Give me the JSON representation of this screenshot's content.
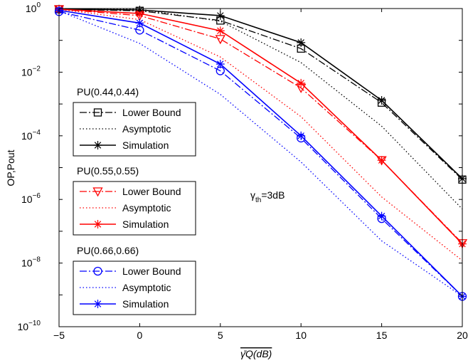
{
  "chart_data": {
    "type": "line",
    "xlabel": "γ̄Q(dB)",
    "ylabel": "OP,Pout",
    "x": [
      -5,
      0,
      5,
      10,
      15,
      20
    ],
    "xlim": [
      -5,
      20
    ],
    "ylim_exponent": [
      -10,
      0
    ],
    "log_scale_y": true,
    "grid": false,
    "x_ticks": [
      "−5",
      "0",
      "5",
      "10",
      "15",
      "20"
    ],
    "y_ticks": [
      {
        "exp": 0,
        "base": "10",
        "sup": "0"
      },
      {
        "exp": -2,
        "base": "10",
        "sup": "−2"
      },
      {
        "exp": -4,
        "base": "10",
        "sup": "−4"
      },
      {
        "exp": -6,
        "base": "10",
        "sup": "−6"
      },
      {
        "exp": -8,
        "base": "10",
        "sup": "−8"
      },
      {
        "exp": -10,
        "base": "10",
        "sup": "−10"
      }
    ],
    "annotation": {
      "text": "γth=3dB",
      "base": "γ",
      "sub": "th",
      "rest": "=3dB"
    },
    "groups": [
      {
        "title": "PU(0.44,0.44)",
        "color": "#000000",
        "series": [
          {
            "name": "Lower Bound",
            "style": "dashdot",
            "marker": "square",
            "values": [
              0.95,
              0.85,
              0.42,
              0.055,
              0.0011,
              4.2e-06
            ]
          },
          {
            "name": "Asymptotic",
            "style": "dotted",
            "marker": "none",
            "values": [
              1.0,
              0.95,
              0.4,
              0.02,
              0.0002,
              5e-07
            ]
          },
          {
            "name": "Simulation",
            "style": "solid",
            "marker": "star",
            "values": [
              0.96,
              0.9,
              0.6,
              0.085,
              0.0013,
              4.5e-06
            ]
          }
        ]
      },
      {
        "title": "PU(0.55,0.55)",
        "color": "#ff0000",
        "series": [
          {
            "name": "Lower Bound",
            "style": "dashdot",
            "marker": "triangle-down",
            "values": [
              0.95,
              0.6,
              0.11,
              0.0032,
              1.7e-05,
              4.2e-08
            ]
          },
          {
            "name": "Asymptotic",
            "style": "dotted",
            "marker": "none",
            "values": [
              0.95,
              0.45,
              0.03,
              0.0004,
              1.2e-06,
              1.2e-08
            ]
          },
          {
            "name": "Simulation",
            "style": "solid",
            "marker": "star",
            "values": [
              0.95,
              0.7,
              0.2,
              0.0045,
              1.7e-05,
              4e-08
            ]
          }
        ]
      },
      {
        "title": "PU(0.66,0.66)",
        "color": "#0000ff",
        "series": [
          {
            "name": "Lower Bound",
            "style": "dashdot",
            "marker": "circle",
            "values": [
              0.8,
              0.21,
              0.011,
              8.5e-05,
              2.5e-07,
              9e-10
            ]
          },
          {
            "name": "Asymptotic",
            "style": "dotted",
            "marker": "none",
            "values": [
              0.85,
              0.08,
              0.002,
              1.5e-05,
              5e-08,
              9e-10
            ]
          },
          {
            "name": "Simulation",
            "style": "solid",
            "marker": "star",
            "values": [
              0.88,
              0.35,
              0.018,
              0.0001,
              3e-07,
              9e-10
            ]
          }
        ]
      }
    ]
  }
}
